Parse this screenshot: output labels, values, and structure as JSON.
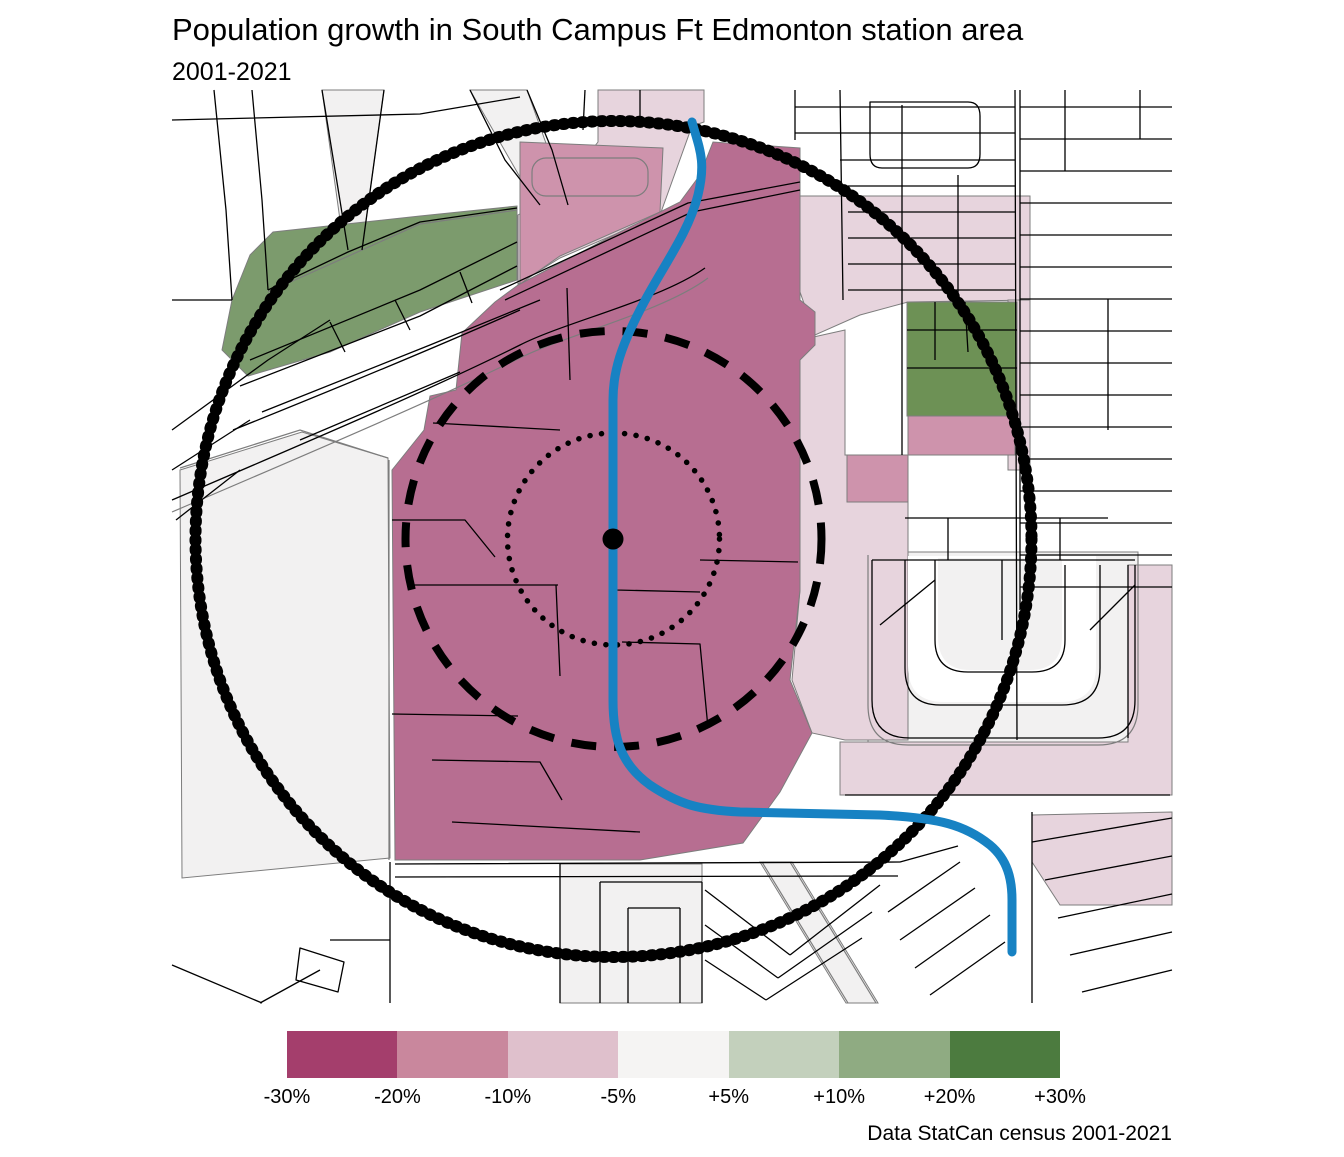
{
  "title": "Population growth in South Campus Ft Edmonton station area",
  "subtitle": "2001-2021",
  "caption": "Data StatCan census 2001-2021",
  "legend": {
    "tick_labels": [
      "-30%",
      "-20%",
      "-10%",
      "-5%",
      "+5%",
      "+10%",
      "+20%",
      "+30%"
    ],
    "swatch_colors": [
      "#A43E6C",
      "#C9879D",
      "#DFC0CC",
      "#F5F4F3",
      "#C3D0BC",
      "#8FAB82",
      "#4C7B3F"
    ],
    "orientation": "horizontal",
    "position": "bottom"
  },
  "map": {
    "type": "choropleth",
    "subject": "population growth 2001-2021 around station",
    "station_marker": "black dot at station location",
    "rings": [
      {
        "name": "inner ring",
        "style": "dotted"
      },
      {
        "name": "middle ring",
        "style": "dashed"
      },
      {
        "name": "outer ring",
        "style": "bold beaded"
      }
    ],
    "lrt_line": {
      "color": "#1782C3",
      "style": "thick solid line through station"
    },
    "regions": [
      {
        "name": "core decline area",
        "value_bucket": "about -20% to -30%",
        "color": "#B76E91"
      },
      {
        "name": "moderate decline patches",
        "value_bucket": "about -10% to -20%",
        "color": "#CE93AC"
      },
      {
        "name": "slight decline areas",
        "value_bucket": "about -5% to -10%",
        "color": "#E7D4DD"
      },
      {
        "name": "stable areas",
        "value_bucket": "about -5% to +5%",
        "color": "#F2F1F1"
      },
      {
        "name": "river valley growth band",
        "value_bucket": "about +10% to +20%",
        "color": "#7C9B6D"
      },
      {
        "name": "east growth block",
        "value_bucket": "about +20%",
        "color": "#6D9155"
      }
    ]
  },
  "theme": {
    "colors": {
      "maroon": "#B76E91",
      "pinkMid": "#CE93AC",
      "pinkLight": "#E7D4DD",
      "offWhite": "#F2F1F1",
      "greenBand": "#7C9B6D",
      "greenBlock": "#6D9155",
      "blue": "#1782C3",
      "boundaryGray": "#7d7d7d",
      "ink": "#000000"
    }
  }
}
